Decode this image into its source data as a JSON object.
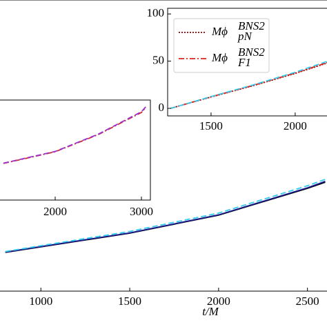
{
  "chart_data": [
    {
      "type": "line",
      "xlabel": "t/M",
      "x": [
        800,
        1000,
        1500,
        2000,
        2500,
        2600
      ],
      "series": [
        {
          "color": "#000000",
          "dash": "solid",
          "values": [
            13.3,
            15.2,
            19.9,
            26.1,
            35.3,
            37.4
          ]
        },
        {
          "color": "#1a1a8c",
          "dash": "solid",
          "values": [
            13.4,
            15.3,
            20.0,
            26.2,
            35.5,
            37.7
          ]
        },
        {
          "color": "#33ccee",
          "dash": "dashed",
          "values": [
            13.6,
            15.6,
            20.5,
            26.8,
            36.2,
            38.4
          ]
        }
      ],
      "xlim": [
        770,
        2610
      ],
      "ylim": [
        0,
        100
      ],
      "xticks": [
        1000,
        1500,
        2000,
        2500
      ]
    },
    {
      "type": "line",
      "x": [
        1400,
        2000,
        2500,
        3000,
        3050
      ],
      "series": [
        {
          "color": "#d62728",
          "dash": "dashdot",
          "values": [
            36.6,
            48.3,
            65.5,
            87.6,
            92.4
          ]
        },
        {
          "color": "#9932cc",
          "dash": "dashed",
          "values": [
            36.9,
            48.6,
            65.9,
            88.3,
            93.1
          ]
        }
      ],
      "xlim": [
        1360,
        3104
      ],
      "ylim": [
        0,
        100
      ],
      "xticks": [
        2000,
        3000
      ]
    },
    {
      "type": "line",
      "x": [
        1260,
        1500,
        1750,
        2000,
        2190
      ],
      "series": [
        {
          "name": "Mϕ",
          "subscript": "pN",
          "superscript": "BNS2",
          "color": "#8b0000",
          "dash": "dotted",
          "values": [
            0,
            12,
            24,
            37,
            48
          ]
        },
        {
          "name": "Mϕ",
          "subscript": "F1",
          "superscript": "BNS2",
          "color": "#e0201b",
          "dash": "dashdot",
          "values": [
            0,
            12.2,
            24.3,
            37.4,
            48.5
          ]
        },
        {
          "color": "#33ccee",
          "dash": "dashed",
          "values": [
            0,
            12.5,
            24.8,
            38.2,
            49.8
          ]
        }
      ],
      "xlim": [
        1242,
        2189
      ],
      "ylim": [
        -8,
        106
      ],
      "xticks": [
        1500,
        2000
      ],
      "yticks": [
        0,
        50,
        100
      ]
    }
  ]
}
